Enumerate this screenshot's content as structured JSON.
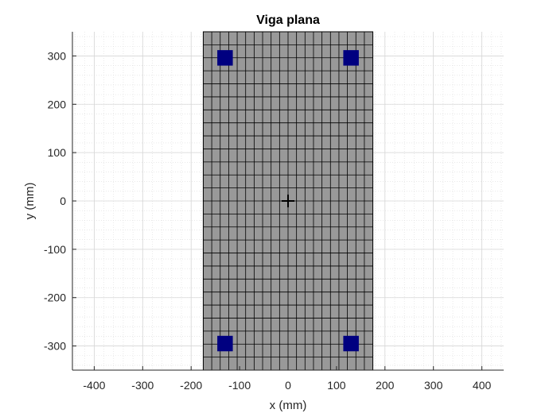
{
  "chart_data": {
    "type": "scatter",
    "title": "Viga plana",
    "xlabel": "x (mm)",
    "ylabel": "y (mm)",
    "xlim": [
      -445,
      445
    ],
    "ylim": [
      -350,
      350
    ],
    "xticks": [
      -400,
      -300,
      -200,
      -100,
      0,
      100,
      200,
      300,
      400
    ],
    "yticks": [
      -300,
      -200,
      -100,
      0,
      100,
      200,
      300
    ],
    "grid": true,
    "minor_grid": true,
    "section": {
      "x_range": [
        -175,
        175
      ],
      "y_range": [
        -350,
        350
      ],
      "mesh_columns": 20,
      "mesh_rows": 26,
      "fill_color": "#999999",
      "mesh_color": "#000000"
    },
    "bars": {
      "color": "#000080",
      "size_mm": 32,
      "points": [
        {
          "x": -130,
          "y": 296
        },
        {
          "x": 130,
          "y": 296
        },
        {
          "x": -130,
          "y": -295
        },
        {
          "x": 130,
          "y": -295
        }
      ]
    },
    "centroid": {
      "x": 0,
      "y": 0,
      "marker": "plus"
    }
  }
}
